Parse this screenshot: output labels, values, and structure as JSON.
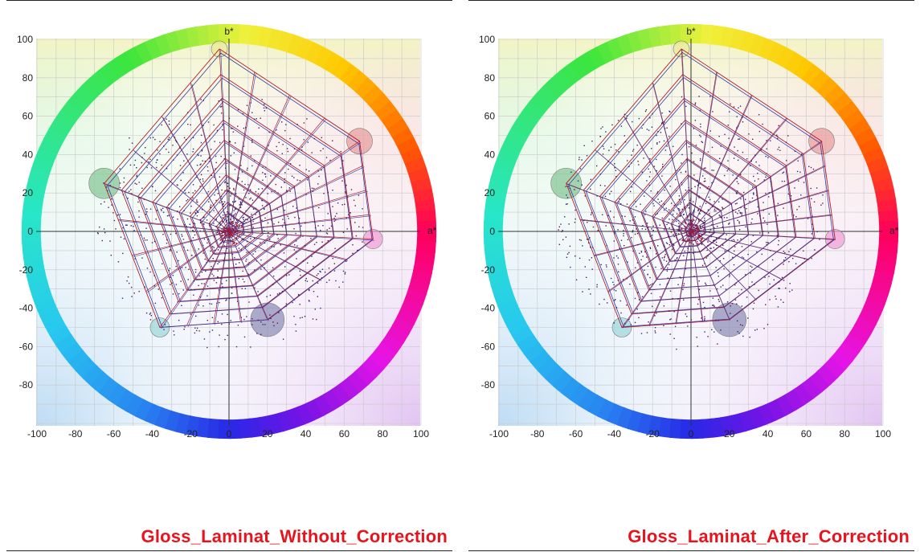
{
  "colors": {
    "mesh_red": "#b0202a",
    "mesh_blue": "#3a3aa8",
    "caption": "#e8131c"
  },
  "chart_data": [
    {
      "type": "scatter",
      "title": "Gloss_Laminat_Without_Correction",
      "xlabel": "a*",
      "ylabel": "b*",
      "xlim": [
        -100,
        100
      ],
      "ylim": [
        -100,
        100
      ],
      "grid": true,
      "xticks": [
        "-100",
        "-80",
        "-60",
        "-40",
        "-20",
        "0",
        "20",
        "40",
        "60",
        "80",
        "100"
      ],
      "yticks": [
        "100",
        "80",
        "60",
        "40",
        "20",
        "0",
        "-20",
        "-40",
        "-60",
        "-80"
      ],
      "primaries": [
        {
          "name": "yellow",
          "a": -5,
          "b": 95,
          "color": "#e8e89a"
        },
        {
          "name": "red",
          "a": 68,
          "b": 47,
          "color": "#e8a0a0"
        },
        {
          "name": "magenta",
          "a": 75,
          "b": -4,
          "color": "#f0a0d8"
        },
        {
          "name": "blue",
          "a": 20,
          "b": -46,
          "color": "#9090b8"
        },
        {
          "name": "cyan",
          "a": -36,
          "b": -50,
          "color": "#a0d8dc"
        },
        {
          "name": "green",
          "a": -65,
          "b": 25,
          "color": "#88c898"
        }
      ]
    },
    {
      "type": "scatter",
      "title": "Gloss_Laminat_After_Correction",
      "xlabel": "a*",
      "ylabel": "b*",
      "xlim": [
        -100,
        100
      ],
      "ylim": [
        -100,
        100
      ],
      "grid": true,
      "xticks": [
        "-100",
        "-80",
        "-60",
        "-40",
        "-20",
        "0",
        "20",
        "40",
        "60",
        "80",
        "100"
      ],
      "yticks": [
        "100",
        "80",
        "60",
        "40",
        "20",
        "0",
        "-20",
        "-40",
        "-60",
        "-80"
      ],
      "primaries": [
        {
          "name": "yellow",
          "a": -5,
          "b": 95,
          "color": "#e8e89a"
        },
        {
          "name": "red",
          "a": 68,
          "b": 47,
          "color": "#e8a0a0"
        },
        {
          "name": "magenta",
          "a": 75,
          "b": -4,
          "color": "#f0a0d8"
        },
        {
          "name": "blue",
          "a": 20,
          "b": -46,
          "color": "#9090b8"
        },
        {
          "name": "cyan",
          "a": -36,
          "b": -50,
          "color": "#a0d8dc"
        },
        {
          "name": "green",
          "a": -65,
          "b": 25,
          "color": "#88c898"
        }
      ]
    }
  ]
}
